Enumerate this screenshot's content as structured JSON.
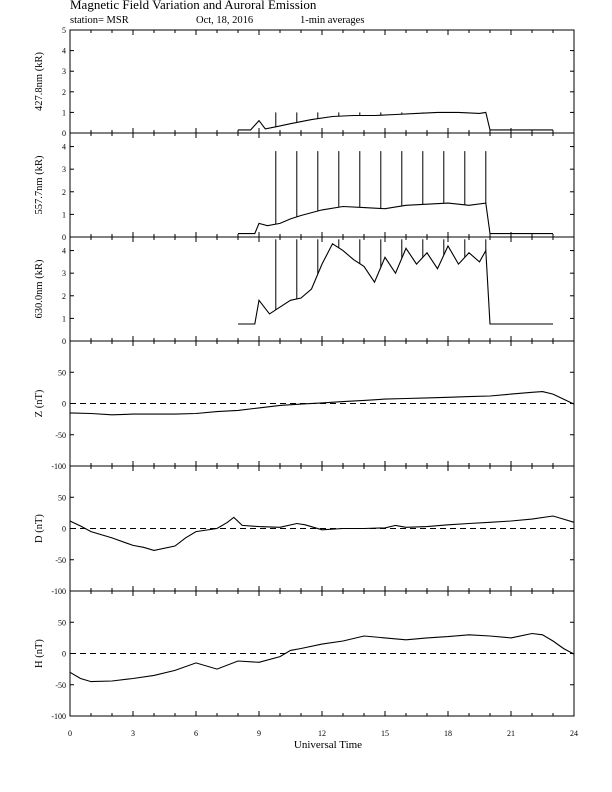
{
  "header": {
    "title": "Magnetic Field Variation and Auroral Emission",
    "station": "station= MSR",
    "date": "Oct, 18, 2016",
    "averaging": "1-min averages"
  },
  "colors": {
    "ink": "#000000",
    "background": "#ffffff"
  },
  "chart_data": [
    {
      "type": "line",
      "ylabel": "427.8nm (kR)",
      "ylim": [
        0,
        5
      ],
      "yticks": [
        "0",
        "1",
        "2",
        "3",
        "4",
        "5"
      ],
      "xlim": [
        0,
        24
      ],
      "series": [
        {
          "x": [
            8,
            8.2,
            8.6,
            9.0,
            9.3,
            9.8,
            10.5,
            11.5,
            12.5,
            13.5,
            14.5,
            15.5,
            16.5,
            17.5,
            18.5,
            19.5,
            19.8,
            20.0,
            21.0,
            22.0,
            23.0
          ],
          "y": [
            0.15,
            0.15,
            0.15,
            0.6,
            0.2,
            0.3,
            0.45,
            0.65,
            0.8,
            0.85,
            0.85,
            0.9,
            0.95,
            1.0,
            1.0,
            0.95,
            1.0,
            0.15,
            0.15,
            0.15,
            0.15
          ]
        }
      ],
      "spikes_x": [
        9.8,
        10.8,
        11.8,
        12.8,
        13.8,
        14.8,
        15.8,
        16.8,
        17.8,
        18.8,
        19.8
      ],
      "spike_top": 1.0
    },
    {
      "type": "line",
      "ylabel": "557.7nm (kR)",
      "ylim": [
        0,
        4.6
      ],
      "yticks": [
        "0",
        "1",
        "2",
        "3",
        "4"
      ],
      "xlim": [
        0,
        24
      ],
      "series": [
        {
          "x": [
            8,
            8.4,
            8.8,
            9.0,
            9.4,
            10.0,
            10.5,
            11.0,
            12.0,
            13.0,
            14.0,
            15.0,
            16.0,
            17.0,
            18.0,
            19.0,
            19.8,
            20.0,
            21.0,
            22.0,
            23.0
          ],
          "y": [
            0.15,
            0.15,
            0.15,
            0.6,
            0.5,
            0.6,
            0.8,
            0.95,
            1.2,
            1.35,
            1.3,
            1.25,
            1.4,
            1.45,
            1.5,
            1.4,
            1.5,
            0.15,
            0.15,
            0.15,
            0.15
          ]
        }
      ],
      "spikes_x": [
        9.8,
        10.8,
        11.8,
        12.8,
        13.8,
        14.8,
        15.8,
        16.8,
        17.8,
        18.8,
        19.8
      ],
      "spike_top": 3.8
    },
    {
      "type": "line",
      "ylabel": "630.0nm (kR)",
      "ylim": [
        0,
        4.6
      ],
      "yticks": [
        "0",
        "1",
        "2",
        "3",
        "4"
      ],
      "xlim": [
        0,
        24
      ],
      "series": [
        {
          "x": [
            8,
            8.6,
            8.8,
            9.0,
            9.5,
            10.0,
            10.5,
            11.0,
            11.5,
            12.0,
            12.5,
            13.0,
            13.5,
            14.0,
            14.5,
            15.0,
            15.5,
            16.0,
            16.5,
            17.0,
            17.5,
            18.0,
            18.5,
            19.0,
            19.5,
            19.8,
            20.0,
            21.0,
            22.0,
            23.0
          ],
          "y": [
            0.75,
            0.75,
            0.75,
            1.8,
            1.2,
            1.5,
            1.8,
            1.9,
            2.3,
            3.4,
            4.3,
            4.0,
            3.6,
            3.3,
            2.6,
            3.7,
            3.0,
            4.1,
            3.4,
            3.9,
            3.2,
            4.2,
            3.4,
            3.9,
            3.5,
            4.0,
            0.75,
            0.75,
            0.75,
            0.75
          ]
        }
      ],
      "spikes_x": [
        9.8,
        10.8,
        11.8,
        12.8,
        13.8,
        14.8,
        15.8,
        16.8,
        17.8,
        18.8,
        19.8
      ],
      "spike_top": 4.5
    },
    {
      "type": "line",
      "ylabel": "Z (nT)",
      "ylim": [
        -100,
        100
      ],
      "yticks": [
        "-100",
        "-50",
        "0",
        "50"
      ],
      "xlim": [
        0,
        24
      ],
      "zero_line": true,
      "series": [
        {
          "x": [
            0,
            1,
            2,
            3,
            4,
            5,
            6,
            7,
            8,
            9,
            10,
            11,
            12,
            13,
            14,
            15,
            16,
            17,
            18,
            19,
            20,
            21,
            22,
            22.5,
            23,
            23.5,
            24
          ],
          "y": [
            -15,
            -16,
            -18,
            -17,
            -17,
            -17,
            -16,
            -13,
            -11,
            -7,
            -3,
            -1,
            1,
            3,
            5,
            7,
            8,
            9,
            10,
            11,
            12,
            15,
            18,
            19,
            15,
            7,
            -1
          ]
        }
      ]
    },
    {
      "type": "line",
      "ylabel": "D (nT)",
      "ylim": [
        -100,
        100
      ],
      "yticks": [
        "-100",
        "-50",
        "0",
        "50"
      ],
      "xlim": [
        0,
        24
      ],
      "zero_line": true,
      "series": [
        {
          "x": [
            0,
            0.5,
            1,
            2,
            3,
            3.5,
            4,
            5,
            5.5,
            6,
            7,
            7.5,
            7.8,
            8.2,
            9,
            10,
            10.8,
            11.2,
            12,
            13,
            14,
            15,
            15.5,
            16,
            17,
            18,
            19,
            20,
            21,
            22,
            23,
            23.5,
            24
          ],
          "y": [
            12,
            4,
            -5,
            -15,
            -27,
            -30,
            -35,
            -28,
            -15,
            -5,
            0,
            10,
            18,
            5,
            3,
            2,
            8,
            6,
            -2,
            0,
            0,
            1,
            5,
            2,
            3,
            6,
            8,
            10,
            12,
            15,
            20,
            15,
            10
          ]
        }
      ]
    },
    {
      "type": "line",
      "ylabel": "H (nT)",
      "ylim": [
        -100,
        100
      ],
      "yticks": [
        "-100",
        "-50",
        "0",
        "50"
      ],
      "xlim": [
        0,
        24
      ],
      "zero_line": true,
      "series": [
        {
          "x": [
            0,
            0.5,
            1,
            2,
            3,
            4,
            5,
            6,
            7,
            8,
            9,
            10,
            10.5,
            11,
            12,
            13,
            14,
            15,
            16,
            17,
            18,
            19,
            20,
            21,
            22,
            22.5,
            23,
            23.5,
            24
          ],
          "y": [
            -30,
            -40,
            -45,
            -44,
            -40,
            -35,
            -27,
            -15,
            -25,
            -12,
            -14,
            -5,
            5,
            8,
            15,
            20,
            28,
            25,
            22,
            25,
            27,
            30,
            28,
            25,
            32,
            30,
            20,
            8,
            -1
          ]
        }
      ]
    }
  ],
  "x_axis": {
    "label": "Universal Time",
    "ticks": [
      "0",
      "3",
      "6",
      "9",
      "12",
      "15",
      "18",
      "21",
      "24"
    ]
  }
}
